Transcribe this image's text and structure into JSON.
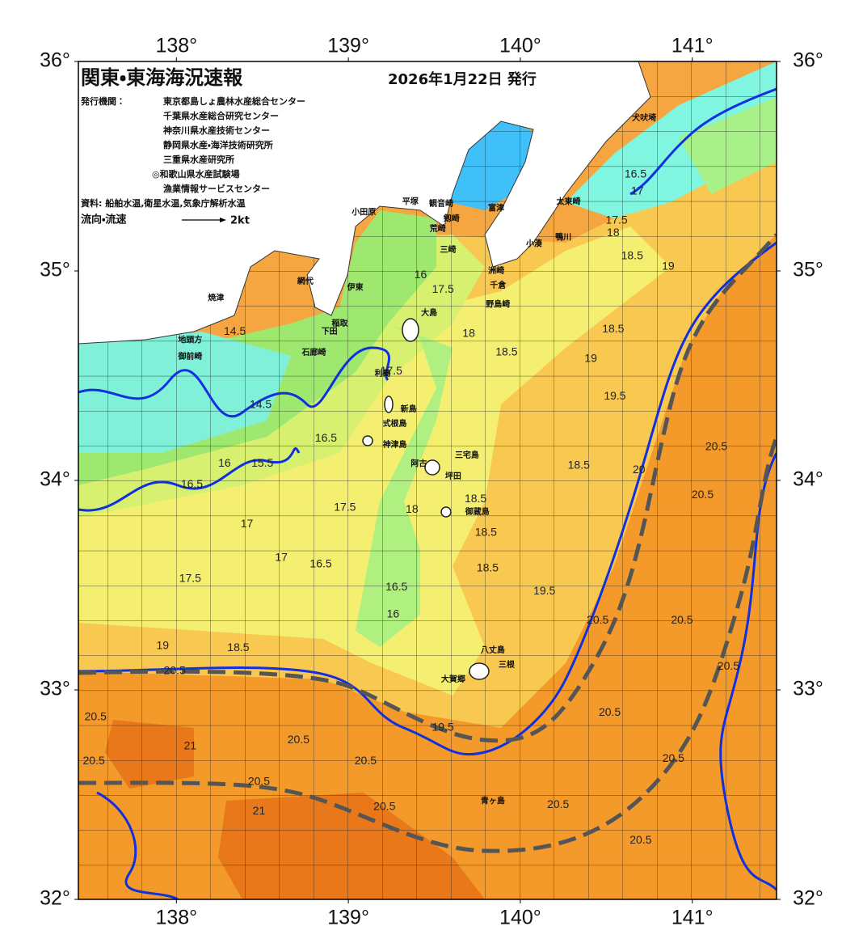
{
  "header": {
    "title": "関東・東海海況速報",
    "date": "2026年1月22日 発行",
    "agency_label": "発行機関：",
    "agencies": [
      "東京都島しょ農林水産総合センター",
      "千葉県水産総合研究センター",
      "神奈川県水産技術センター",
      "静岡県水産・海洋技術研究所",
      "三重県水産研究所",
      "◎和歌山県水産試験場",
      "漁業情報サービスセンター"
    ],
    "source": "資料: 船舶水温,衛星水温,気象庁解析水温",
    "current_label": "流向・流速",
    "current_scale": "2kt"
  },
  "map": {
    "lonlim": [
      137.43,
      141.49
    ],
    "latlim": [
      32,
      36
    ],
    "lon_ticks": [
      {
        "value": 138,
        "label": "138°"
      },
      {
        "value": 139,
        "label": "139°"
      },
      {
        "value": 140,
        "label": "140°"
      },
      {
        "value": 141,
        "label": "141°"
      }
    ],
    "lat_ticks": [
      {
        "value": 32,
        "label": "32°"
      },
      {
        "value": 33,
        "label": "33°"
      },
      {
        "value": 34,
        "label": "34°"
      },
      {
        "value": 35,
        "label": "35°"
      },
      {
        "value": 36,
        "label": "36°"
      }
    ],
    "places": [
      {
        "name": "犬吠埼",
        "lon": 140.72,
        "lat": 35.73
      },
      {
        "name": "太東崎",
        "lon": 140.28,
        "lat": 35.33
      },
      {
        "name": "鴨川",
        "lon": 140.25,
        "lat": 35.16
      },
      {
        "name": "小湊",
        "lon": 140.08,
        "lat": 35.13
      },
      {
        "name": "平塚",
        "lon": 139.36,
        "lat": 35.33
      },
      {
        "name": "観音崎",
        "lon": 139.54,
        "lat": 35.32
      },
      {
        "name": "富津",
        "lon": 139.86,
        "lat": 35.3
      },
      {
        "name": "小田原",
        "lon": 139.09,
        "lat": 35.28
      },
      {
        "name": "剱崎",
        "lon": 139.6,
        "lat": 35.25
      },
      {
        "name": "荒崎",
        "lon": 139.52,
        "lat": 35.2
      },
      {
        "name": "三崎",
        "lon": 139.58,
        "lat": 35.1
      },
      {
        "name": "洲崎",
        "lon": 139.86,
        "lat": 35.0
      },
      {
        "name": "千倉",
        "lon": 139.87,
        "lat": 34.93
      },
      {
        "name": "野島崎",
        "lon": 139.87,
        "lat": 34.84
      },
      {
        "name": "焼津",
        "lon": 138.23,
        "lat": 34.87
      },
      {
        "name": "網代",
        "lon": 138.75,
        "lat": 34.95
      },
      {
        "name": "伊東",
        "lon": 139.04,
        "lat": 34.92
      },
      {
        "name": "大島",
        "lon": 139.47,
        "lat": 34.8
      },
      {
        "name": "稲取",
        "lon": 138.95,
        "lat": 34.75
      },
      {
        "name": "下田",
        "lon": 138.89,
        "lat": 34.71
      },
      {
        "name": "石廊崎",
        "lon": 138.8,
        "lat": 34.61
      },
      {
        "name": "地頭方",
        "lon": 138.08,
        "lat": 34.67
      },
      {
        "name": "御前崎",
        "lon": 138.08,
        "lat": 34.59
      },
      {
        "name": "利島",
        "lon": 139.2,
        "lat": 34.51
      },
      {
        "name": "新島",
        "lon": 139.35,
        "lat": 34.34
      },
      {
        "name": "式根島",
        "lon": 139.27,
        "lat": 34.27
      },
      {
        "name": "神津島",
        "lon": 139.27,
        "lat": 34.17
      },
      {
        "name": "三宅島",
        "lon": 139.69,
        "lat": 34.12
      },
      {
        "name": "坪田",
        "lon": 139.61,
        "lat": 34.02
      },
      {
        "name": "阿古",
        "lon": 139.41,
        "lat": 34.08
      },
      {
        "name": "御蔵島",
        "lon": 139.75,
        "lat": 33.85
      },
      {
        "name": "八丈島",
        "lon": 139.84,
        "lat": 33.19
      },
      {
        "name": "三根",
        "lon": 139.92,
        "lat": 33.12
      },
      {
        "name": "大賀郷",
        "lon": 139.61,
        "lat": 33.05
      },
      {
        "name": "青ヶ島",
        "lon": 139.84,
        "lat": 32.47
      }
    ],
    "isotherm_labels": [
      {
        "value": 16.5,
        "lon": 140.67,
        "lat": 35.46
      },
      {
        "value": 17,
        "lon": 140.68,
        "lat": 35.38
      },
      {
        "value": 17.5,
        "lon": 140.56,
        "lat": 35.24
      },
      {
        "value": 18,
        "lon": 140.54,
        "lat": 35.18
      },
      {
        "value": 18.5,
        "lon": 140.65,
        "lat": 35.07
      },
      {
        "value": 19,
        "lon": 140.86,
        "lat": 35.02
      },
      {
        "value": 16,
        "lon": 139.42,
        "lat": 34.98
      },
      {
        "value": 17.5,
        "lon": 139.55,
        "lat": 34.91
      },
      {
        "value": 18,
        "lon": 139.7,
        "lat": 34.7
      },
      {
        "value": 18.5,
        "lon": 139.92,
        "lat": 34.61
      },
      {
        "value": 19,
        "lon": 140.41,
        "lat": 34.58
      },
      {
        "value": 18.5,
        "lon": 140.54,
        "lat": 34.72
      },
      {
        "value": 14.5,
        "lon": 138.34,
        "lat": 34.71
      },
      {
        "value": 17.5,
        "lon": 139.25,
        "lat": 34.52
      },
      {
        "value": 14.5,
        "lon": 138.49,
        "lat": 34.36
      },
      {
        "value": 16.5,
        "lon": 138.87,
        "lat": 34.2
      },
      {
        "value": 16,
        "lon": 138.28,
        "lat": 34.08
      },
      {
        "value": 15.5,
        "lon": 138.5,
        "lat": 34.08
      },
      {
        "value": 16.5,
        "lon": 138.09,
        "lat": 33.98
      },
      {
        "value": 17.5,
        "lon": 138.98,
        "lat": 33.87
      },
      {
        "value": 18,
        "lon": 139.37,
        "lat": 33.86
      },
      {
        "value": 18.5,
        "lon": 139.74,
        "lat": 33.91
      },
      {
        "value": 18.5,
        "lon": 139.8,
        "lat": 33.75
      },
      {
        "value": 17,
        "lon": 138.41,
        "lat": 33.79
      },
      {
        "value": 17,
        "lon": 138.61,
        "lat": 33.63
      },
      {
        "value": 16.5,
        "lon": 138.84,
        "lat": 33.6
      },
      {
        "value": 17.5,
        "lon": 138.08,
        "lat": 33.53
      },
      {
        "value": 16.5,
        "lon": 139.28,
        "lat": 33.49
      },
      {
        "value": 16,
        "lon": 139.26,
        "lat": 33.36
      },
      {
        "value": 18.5,
        "lon": 139.81,
        "lat": 33.58
      },
      {
        "value": 19.5,
        "lon": 140.14,
        "lat": 33.47
      },
      {
        "value": 20.5,
        "lon": 140.45,
        "lat": 33.33
      },
      {
        "value": 20.5,
        "lon": 141.14,
        "lat": 34.16
      },
      {
        "value": 20.5,
        "lon": 141.06,
        "lat": 33.93
      },
      {
        "value": 20.5,
        "lon": 140.94,
        "lat": 33.33
      },
      {
        "value": 20.5,
        "lon": 141.21,
        "lat": 33.11
      },
      {
        "value": 19,
        "lon": 137.92,
        "lat": 33.21
      },
      {
        "value": 18.5,
        "lon": 138.36,
        "lat": 33.2
      },
      {
        "value": 20.5,
        "lon": 137.99,
        "lat": 33.09
      },
      {
        "value": 20.5,
        "lon": 137.53,
        "lat": 32.87
      },
      {
        "value": 20.5,
        "lon": 137.52,
        "lat": 32.66
      },
      {
        "value": 20.5,
        "lon": 138.71,
        "lat": 32.76
      },
      {
        "value": 20.5,
        "lon": 138.48,
        "lat": 32.56
      },
      {
        "value": 20.5,
        "lon": 139.1,
        "lat": 32.66
      },
      {
        "value": 20.5,
        "lon": 139.21,
        "lat": 32.44
      },
      {
        "value": 19.5,
        "lon": 139.55,
        "lat": 32.82
      },
      {
        "value": 20.5,
        "lon": 140.52,
        "lat": 32.89
      },
      {
        "value": 20.5,
        "lon": 140.89,
        "lat": 32.67
      },
      {
        "value": 20.5,
        "lon": 140.22,
        "lat": 32.45
      },
      {
        "value": 20.5,
        "lon": 140.7,
        "lat": 32.28
      },
      {
        "value": 21,
        "lon": 138.08,
        "lat": 32.73
      },
      {
        "value": 21,
        "lon": 138.48,
        "lat": 32.42
      },
      {
        "value": 19.5,
        "lon": 140.55,
        "lat": 34.4
      },
      {
        "value": 20,
        "lon": 140.69,
        "lat": 34.05
      },
      {
        "value": 18.5,
        "lon": 140.34,
        "lat": 34.07
      }
    ]
  }
}
